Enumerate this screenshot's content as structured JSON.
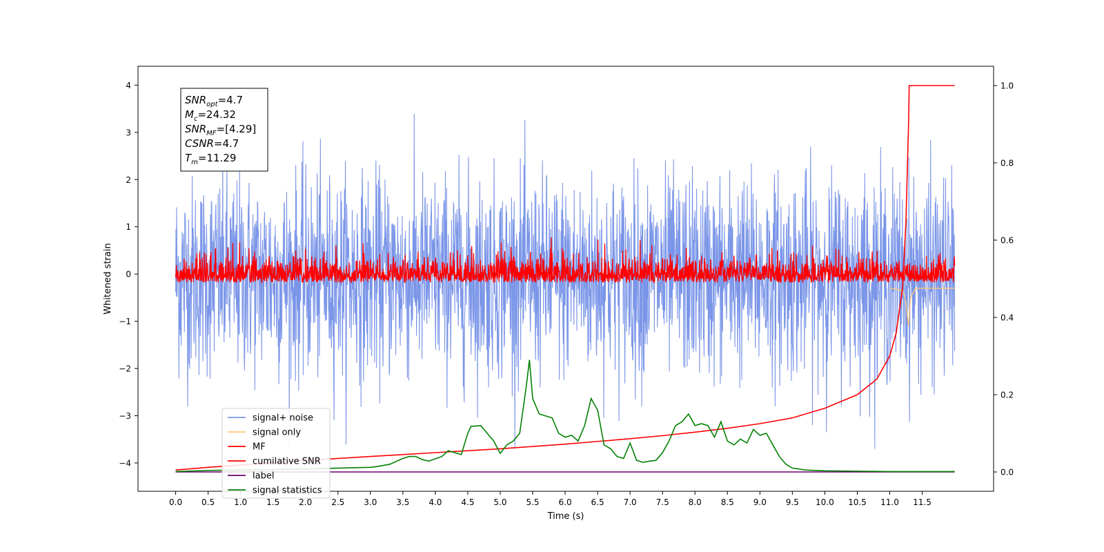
{
  "chart_data": {
    "type": "line",
    "title": "",
    "xlabel": "Time (s)",
    "ylabel": "Whitened strain",
    "y2label": "",
    "xlim": [
      -0.58,
      12.6
    ],
    "ylim": [
      -4.6,
      4.4
    ],
    "y2lim": [
      -0.05,
      1.05
    ],
    "x_ticks": [
      "0.0",
      "0.5",
      "1.0",
      "1.5",
      "2.0",
      "2.5",
      "3.0",
      "3.5",
      "4.0",
      "4.5",
      "5.0",
      "5.5",
      "6.0",
      "6.5",
      "7.0",
      "7.5",
      "8.0",
      "8.5",
      "9.0",
      "9.5",
      "10.0",
      "10.5",
      "11.0",
      "11.5"
    ],
    "y_ticks": [
      "4",
      "3",
      "2",
      "1",
      "0",
      "−1",
      "−2",
      "−3",
      "−4"
    ],
    "y2_ticks": [
      "1.0",
      "0.8",
      "0.6",
      "0.4",
      "0.2",
      "0.0"
    ],
    "grid": false,
    "annotation_lines": [
      {
        "sym": "SNR",
        "sub": "opt",
        "rest": "=4.7"
      },
      {
        "sym": "M",
        "sub": "c",
        "rest": "=24.32"
      },
      {
        "sym": "SNR",
        "sub": "MF",
        "rest": "=[4.29]"
      },
      {
        "sym": "CSNR",
        "sub": "",
        "rest": "=4.7"
      },
      {
        "sym": "T",
        "sub": "m",
        "rest": "=11.29"
      }
    ],
    "legend": {
      "position": "lower-left",
      "entries": [
        {
          "label": "signal+ noise",
          "color": "#7b96e8"
        },
        {
          "label": "signal only",
          "color": "#ffc87a"
        },
        {
          "label": "MF",
          "color": "#ff0000"
        },
        {
          "label": "cumilative SNR",
          "color": "#ff0000"
        },
        {
          "label": "label",
          "color": "#6a006a"
        },
        {
          "label": "signal statistics",
          "color": "#008000"
        }
      ]
    },
    "series": [
      {
        "name": "signal+ noise",
        "axis": "left",
        "color": "#7b96e8",
        "description_range": [
          -3.7,
          4.0
        ],
        "x_range": [
          0.0,
          12.0
        ],
        "noise_envelope": 2.3
      },
      {
        "name": "signal only",
        "axis": "left",
        "color": "#ffc87a",
        "x": [
          11.0,
          11.1,
          11.2,
          11.25,
          11.29,
          11.32,
          11.4,
          12.0
        ],
        "y": [
          -0.3,
          -0.32,
          -0.35,
          -0.6,
          -1.1,
          -0.5,
          -0.3,
          -0.3
        ]
      },
      {
        "name": "MF",
        "axis": "left",
        "color": "#ff0000",
        "description_range": [
          -0.4,
          1.0
        ],
        "x_range": [
          0.0,
          12.0
        ],
        "offset": 0.0
      },
      {
        "name": "cumilative SNR",
        "axis": "right",
        "color": "#ff0000",
        "x": [
          0.0,
          0.5,
          1.0,
          1.5,
          2.0,
          2.5,
          3.0,
          3.5,
          4.0,
          4.5,
          5.0,
          5.5,
          6.0,
          6.5,
          7.0,
          7.5,
          8.0,
          8.5,
          9.0,
          9.5,
          10.0,
          10.5,
          10.8,
          11.0,
          11.1,
          11.2,
          11.25,
          11.29,
          11.3,
          12.0
        ],
        "y": [
          0.005,
          0.012,
          0.018,
          0.024,
          0.03,
          0.035,
          0.04,
          0.045,
          0.05,
          0.055,
          0.06,
          0.066,
          0.072,
          0.079,
          0.086,
          0.094,
          0.103,
          0.113,
          0.125,
          0.14,
          0.165,
          0.2,
          0.24,
          0.3,
          0.36,
          0.48,
          0.65,
          0.9,
          1.0,
          1.0
        ]
      },
      {
        "name": "label",
        "axis": "right",
        "color": "#6a006a",
        "x": [
          0.0,
          12.0
        ],
        "y": [
          0.0,
          0.0
        ]
      },
      {
        "name": "signal statistics",
        "axis": "right",
        "color": "#008000",
        "x": [
          0.0,
          0.5,
          1.0,
          1.5,
          2.0,
          2.5,
          3.0,
          3.1,
          3.3,
          3.5,
          3.6,
          3.7,
          3.8,
          3.9,
          4.1,
          4.2,
          4.4,
          4.5,
          4.55,
          4.7,
          4.9,
          5.0,
          5.1,
          5.2,
          5.3,
          5.4,
          5.45,
          5.5,
          5.6,
          5.8,
          5.9,
          6.0,
          6.1,
          6.2,
          6.3,
          6.4,
          6.5,
          6.6,
          6.7,
          6.8,
          6.9,
          7.0,
          7.1,
          7.2,
          7.3,
          7.4,
          7.5,
          7.6,
          7.7,
          7.8,
          7.9,
          8.0,
          8.1,
          8.2,
          8.3,
          8.4,
          8.5,
          8.6,
          8.7,
          8.8,
          8.9,
          9.0,
          9.1,
          9.2,
          9.3,
          9.4,
          9.5,
          9.7,
          10.0,
          10.5,
          11.0,
          12.0
        ],
        "y": [
          0.001,
          0.004,
          0.005,
          0.006,
          0.008,
          0.01,
          0.012,
          0.014,
          0.02,
          0.035,
          0.04,
          0.04,
          0.032,
          0.028,
          0.04,
          0.055,
          0.045,
          0.1,
          0.118,
          0.12,
          0.08,
          0.048,
          0.07,
          0.08,
          0.1,
          0.22,
          0.29,
          0.19,
          0.15,
          0.14,
          0.1,
          0.09,
          0.095,
          0.08,
          0.12,
          0.19,
          0.16,
          0.07,
          0.06,
          0.04,
          0.035,
          0.075,
          0.03,
          0.025,
          0.028,
          0.03,
          0.05,
          0.08,
          0.12,
          0.13,
          0.15,
          0.12,
          0.125,
          0.12,
          0.09,
          0.13,
          0.08,
          0.07,
          0.085,
          0.075,
          0.11,
          0.095,
          0.1,
          0.07,
          0.04,
          0.02,
          0.01,
          0.005,
          0.003,
          0.002,
          0.001,
          0.001
        ]
      }
    ]
  }
}
